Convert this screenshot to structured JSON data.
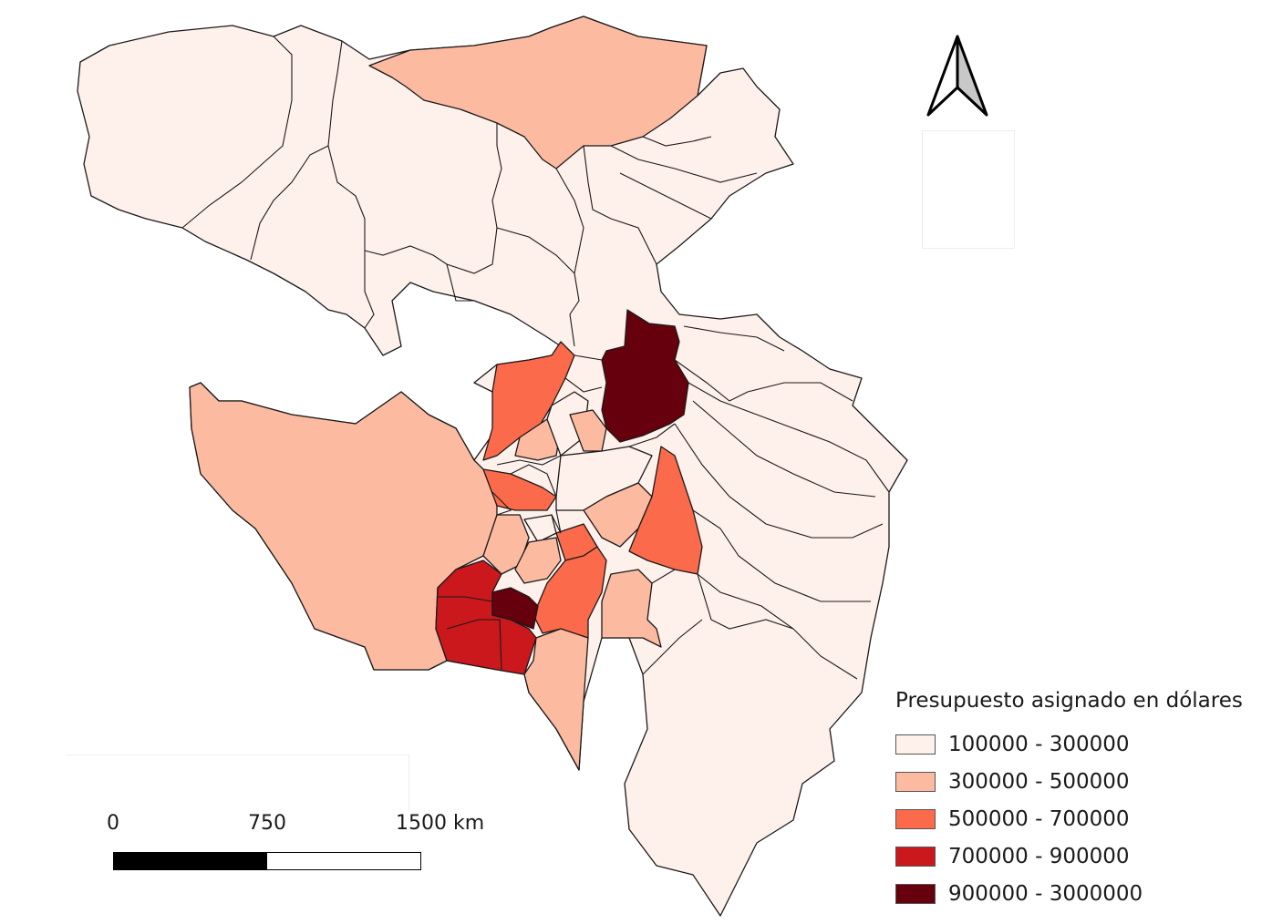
{
  "legend": {
    "title": "Presupuesto asignado en dólares",
    "classes": [
      {
        "label": "100000 - 300000",
        "color": "#fef0eb"
      },
      {
        "label": "300000 - 500000",
        "color": "#fcbba1"
      },
      {
        "label": "500000 - 700000",
        "color": "#fb6a4a"
      },
      {
        "label": "700000 - 900000",
        "color": "#cb181d"
      },
      {
        "label": "900000 - 3000000",
        "color": "#67000d"
      }
    ]
  },
  "scale_bar": {
    "ticks": [
      "0",
      "750",
      "1500 km"
    ]
  },
  "north_arrow": {
    "icon": "north-arrow-icon"
  }
}
